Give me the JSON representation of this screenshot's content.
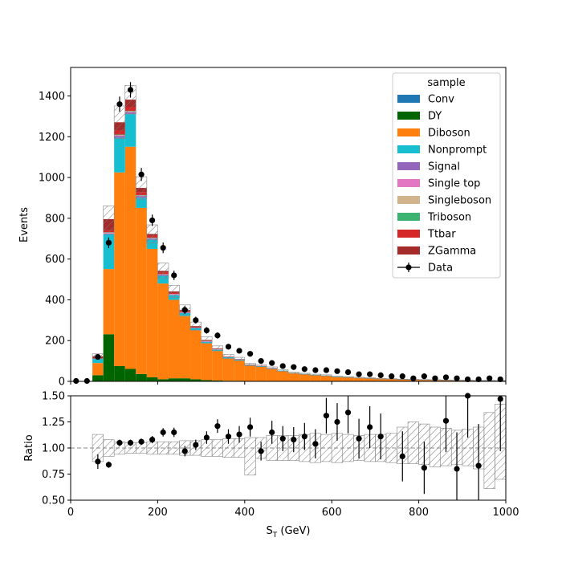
{
  "chart_data": {
    "type": "bar",
    "stacked": true,
    "bins": {
      "start": 0,
      "width": 25,
      "count": 40
    },
    "x_range": [
      0,
      1000
    ],
    "xlabel_base": "S",
    "xlabel_sub": "T",
    "xlabel_unit": " (GeV)",
    "x_ticks": [
      0,
      200,
      400,
      600,
      800,
      1000
    ],
    "main": {
      "ylabel": "Events",
      "ylim": [
        0,
        1540
      ],
      "y_ticks": [
        0,
        200,
        400,
        600,
        800,
        1000,
        1200,
        1400
      ],
      "series": [
        {
          "name": "Conv",
          "color": "#1f77b4",
          "values": [
            0,
            0,
            0,
            1,
            0,
            1,
            1,
            0,
            0,
            0,
            0,
            0,
            0,
            0,
            0,
            0,
            0,
            0,
            0,
            0,
            0,
            0,
            0,
            0,
            0,
            0,
            0,
            0,
            0,
            0,
            0,
            0,
            0,
            0,
            0,
            0,
            0,
            0,
            0,
            0
          ]
        },
        {
          "name": "DY",
          "color": "#006400",
          "values": [
            0,
            0,
            30,
            230,
            75,
            60,
            35,
            20,
            10,
            15,
            15,
            10,
            6,
            4,
            3,
            3,
            2,
            2,
            2,
            1,
            1,
            1,
            1,
            1,
            0,
            0,
            0,
            0,
            0,
            0,
            0,
            0,
            0,
            0,
            0,
            0,
            0,
            0,
            0,
            0
          ]
        },
        {
          "name": "Diboson",
          "color": "#ff7f0e",
          "values": [
            0,
            0,
            60,
            320,
            950,
            1090,
            815,
            630,
            470,
            385,
            305,
            240,
            180,
            145,
            110,
            100,
            75,
            70,
            60,
            50,
            40,
            35,
            30,
            27,
            22,
            20,
            17,
            15,
            13,
            12,
            10,
            9,
            8,
            7,
            6,
            5,
            5,
            4,
            4,
            3
          ]
        },
        {
          "name": "Nonprompt",
          "color": "#17becf",
          "values": [
            0,
            0,
            20,
            170,
            170,
            160,
            50,
            45,
            38,
            22,
            15,
            10,
            8,
            6,
            5,
            4,
            3,
            3,
            2,
            2,
            1,
            1,
            1,
            1,
            1,
            1,
            1,
            1,
            0,
            0,
            0,
            0,
            0,
            0,
            0,
            0,
            0,
            0,
            0,
            0
          ]
        },
        {
          "name": "Signal",
          "color": "#9467bd",
          "values": [
            0,
            0,
            1,
            4,
            8,
            8,
            7,
            5,
            4,
            3,
            3,
            2,
            2,
            1,
            1,
            1,
            1,
            1,
            1,
            0,
            0,
            0,
            0,
            0,
            0,
            0,
            0,
            0,
            0,
            0,
            0,
            0,
            0,
            0,
            0,
            0,
            0,
            0,
            0,
            0
          ]
        },
        {
          "name": "Single top",
          "color": "#e377c2",
          "values": [
            0,
            0,
            0,
            2,
            4,
            4,
            3,
            2,
            2,
            2,
            1,
            1,
            1,
            1,
            0,
            0,
            0,
            0,
            0,
            0,
            0,
            0,
            0,
            0,
            0,
            0,
            0,
            0,
            0,
            0,
            0,
            0,
            0,
            0,
            0,
            0,
            0,
            0,
            0,
            0
          ]
        },
        {
          "name": "Singleboson",
          "color": "#d2b48c",
          "values": [
            0,
            0,
            1,
            3,
            2,
            2,
            1,
            1,
            1,
            1,
            0,
            0,
            0,
            0,
            0,
            0,
            0,
            0,
            0,
            0,
            0,
            0,
            0,
            0,
            0,
            0,
            0,
            0,
            0,
            0,
            0,
            0,
            0,
            0,
            0,
            0,
            0,
            0,
            0,
            0
          ]
        },
        {
          "name": "Triboson",
          "color": "#3cb371",
          "values": [
            0,
            0,
            0,
            1,
            2,
            2,
            2,
            2,
            1,
            1,
            1,
            1,
            1,
            1,
            0,
            0,
            0,
            0,
            0,
            0,
            0,
            0,
            0,
            0,
            0,
            0,
            0,
            0,
            0,
            0,
            0,
            0,
            0,
            0,
            0,
            0,
            0,
            0,
            0,
            0
          ]
        },
        {
          "name": "Ttbar",
          "color": "#d62728",
          "values": [
            0,
            0,
            1,
            10,
            20,
            20,
            15,
            10,
            8,
            6,
            5,
            4,
            3,
            2,
            2,
            1,
            1,
            1,
            1,
            0,
            0,
            0,
            0,
            0,
            0,
            0,
            0,
            0,
            0,
            0,
            0,
            0,
            0,
            0,
            0,
            0,
            0,
            0,
            0,
            0
          ]
        },
        {
          "name": "ZGamma",
          "color": "#a52a2a",
          "values": [
            0,
            0,
            10,
            55,
            40,
            35,
            20,
            8,
            8,
            6,
            5,
            3,
            2,
            2,
            1,
            1,
            1,
            0,
            0,
            0,
            0,
            0,
            0,
            0,
            0,
            0,
            0,
            0,
            0,
            0,
            0,
            0,
            0,
            0,
            0,
            0,
            0,
            0,
            0,
            0
          ]
        }
      ],
      "unc": [
        0,
        0,
        12,
        65,
        80,
        70,
        55,
        45,
        38,
        30,
        25,
        20,
        15,
        12,
        10,
        8,
        6,
        5,
        5,
        4,
        3,
        3,
        3,
        3,
        2,
        2,
        2,
        2,
        2,
        1,
        1,
        1,
        1,
        1,
        1,
        1,
        1,
        1,
        1,
        1
      ],
      "data": {
        "name": "Data",
        "x": [
          12.5,
          37.5,
          62.5,
          87.5,
          112.5,
          137.5,
          162.5,
          187.5,
          212.5,
          237.5,
          262.5,
          287.5,
          312.5,
          337.5,
          362.5,
          387.5,
          412.5,
          437.5,
          462.5,
          487.5,
          512.5,
          537.5,
          562.5,
          587.5,
          612.5,
          637.5,
          662.5,
          687.5,
          712.5,
          737.5,
          762.5,
          787.5,
          812.5,
          837.5,
          862.5,
          887.5,
          912.5,
          937.5,
          962.5,
          987.5
        ],
        "y": [
          2,
          2,
          120,
          680,
          1360,
          1430,
          1015,
          790,
          655,
          520,
          350,
          300,
          250,
          225,
          170,
          150,
          135,
          100,
          90,
          75,
          70,
          60,
          55,
          55,
          50,
          45,
          35,
          35,
          30,
          25,
          25,
          15,
          25,
          15,
          20,
          15,
          10,
          10,
          15,
          10
        ],
        "err": [
          1.4,
          1.4,
          11,
          26,
          37,
          38,
          32,
          28,
          26,
          23,
          19,
          17,
          16,
          15,
          13,
          12,
          12,
          10,
          9.5,
          8.7,
          8.4,
          7.7,
          7.4,
          7.4,
          7.1,
          6.7,
          5.9,
          5.9,
          5.5,
          5,
          5,
          3.9,
          5,
          3.9,
          4.5,
          3.9,
          3.2,
          3.2,
          3.9,
          3.2
        ]
      },
      "legend": {
        "title": "sample",
        "position": "top-right"
      }
    },
    "ratio": {
      "ylabel": "Ratio",
      "ylim": [
        0.5,
        1.5
      ],
      "y_ticks": [
        0.5,
        0.75,
        1.0,
        1.25,
        1.5
      ],
      "y_tick_labels": [
        "0.50",
        "0.75",
        "1.00",
        "1.25",
        "1.50"
      ],
      "reference": 1.0,
      "band_low": [
        1,
        1,
        0.87,
        0.92,
        0.94,
        0.95,
        0.95,
        0.94,
        0.94,
        0.94,
        0.93,
        0.93,
        0.92,
        0.92,
        0.91,
        0.91,
        0.74,
        0.9,
        0.88,
        0.88,
        0.88,
        0.87,
        0.86,
        0.87,
        0.86,
        0.87,
        0.88,
        0.87,
        0.87,
        0.86,
        0.85,
        0.85,
        0.84,
        0.82,
        0.83,
        0.84,
        0.83,
        0.8,
        0.61,
        0.7
      ],
      "band_high": [
        1,
        1,
        1.13,
        1.08,
        1.06,
        1.05,
        1.05,
        1.06,
        1.06,
        1.06,
        1.07,
        1.07,
        1.08,
        1.08,
        1.09,
        1.09,
        1.1,
        1.1,
        1.12,
        1.12,
        1.12,
        1.13,
        1.14,
        1.13,
        1.14,
        1.13,
        1.12,
        1.13,
        1.13,
        1.14,
        1.2,
        1.25,
        1.23,
        1.2,
        1.19,
        1.17,
        1.18,
        1.2,
        1.34,
        1.42
      ],
      "points_x": [
        62.5,
        87.5,
        112.5,
        137.5,
        162.5,
        187.5,
        212.5,
        237.5,
        262.5,
        287.5,
        312.5,
        337.5,
        362.5,
        387.5,
        412.5,
        437.5,
        462.5,
        487.5,
        512.5,
        537.5,
        562.5,
        587.5,
        612.5,
        637.5,
        662.5,
        687.5,
        712.5,
        762.5,
        812.5,
        862.5,
        887.5,
        912.5,
        937.5,
        987.5
      ],
      "points_y": [
        0.87,
        0.84,
        1.05,
        1.05,
        1.06,
        1.08,
        1.15,
        1.15,
        0.97,
        1.03,
        1.1,
        1.21,
        1.11,
        1.13,
        1.2,
        0.97,
        1.15,
        1.09,
        1.08,
        1.11,
        1.04,
        1.31,
        1.25,
        1.34,
        1.09,
        1.2,
        1.11,
        0.92,
        0.81,
        1.26,
        0.8,
        1.5,
        0.83,
        1.47
      ],
      "points_err": [
        0.07,
        0.03,
        0.03,
        0.03,
        0.03,
        0.035,
        0.04,
        0.045,
        0.05,
        0.05,
        0.06,
        0.065,
        0.07,
        0.08,
        0.09,
        0.09,
        0.11,
        0.12,
        0.12,
        0.13,
        0.14,
        0.17,
        0.18,
        0.2,
        0.19,
        0.2,
        0.22,
        0.24,
        0.25,
        0.3,
        0.35,
        0.4,
        0.4,
        0.5
      ]
    }
  }
}
